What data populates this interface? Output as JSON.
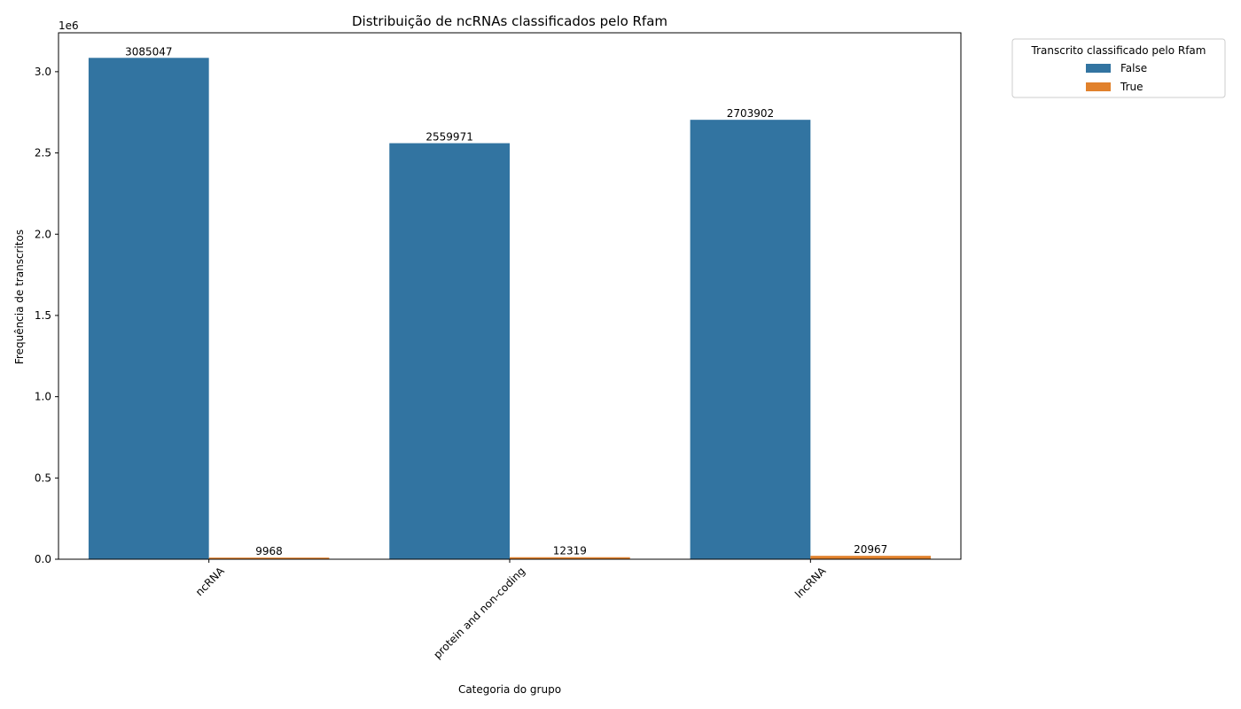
{
  "chart_data": {
    "type": "bar",
    "title": "Distribuição de ncRNAs classificados pelo Rfam",
    "xlabel": "Categoria do grupo",
    "ylabel": "Frequência de transcritos",
    "y_offset_label": "1e6",
    "categories": [
      "ncRNA",
      "protein and non-coding",
      "lncRNA"
    ],
    "series": [
      {
        "name": "False",
        "color": "#3274a1",
        "values": [
          3085047,
          2559971,
          2703902
        ]
      },
      {
        "name": "True",
        "color": "#e1812c",
        "values": [
          9968,
          12319,
          20967
        ]
      }
    ],
    "y_ticks": [
      0,
      500000,
      1000000,
      1500000,
      2000000,
      2500000,
      3000000
    ],
    "y_tick_labels": [
      "0.0",
      "0.5",
      "1.0",
      "1.5",
      "2.0",
      "2.5",
      "3.0"
    ],
    "ylim": [
      0,
      3239299
    ],
    "grid": false,
    "legend": {
      "title": "Transcrito classificado pelo Rfam",
      "placement": "outside-top-right"
    },
    "x_tick_rotation_deg": 45
  }
}
